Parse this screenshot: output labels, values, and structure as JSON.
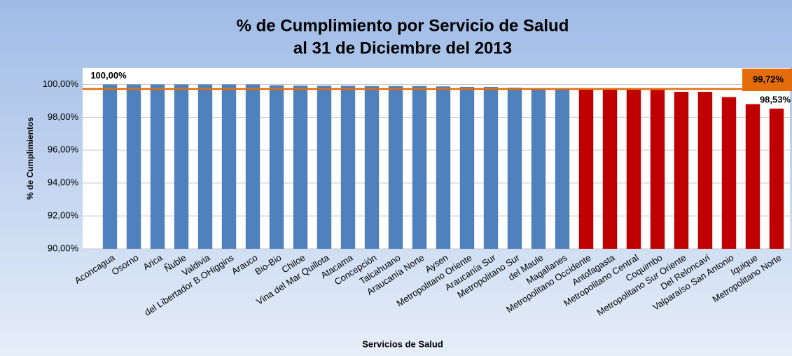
{
  "chart_data": {
    "type": "bar",
    "title": "% de Cumplimiento por Servicio de Salud",
    "subtitle": "al 31 de Diciembre del 2013",
    "x_label": "Servicios de Salud",
    "y_label": "% de Cumplimientos",
    "categories": [
      "Aconcagua",
      "Osorno",
      "Arica",
      "Ñuble",
      "Valdivia",
      "del Libertador B.OHiggins",
      "Arauco",
      "Bio-Bio",
      "Chiloe",
      "Vina del Mar Quillota",
      "Atacama",
      "Concepción",
      "Talcahuano",
      "Araucanía Norte",
      "Aysen",
      "Metropolitano Oriente",
      "Araucanía Sur",
      "Metropolitano Sur",
      "del Maule",
      "Magallanes",
      "Metropolitano Occidente",
      "Antofagasta",
      "Metropolitano Central",
      "Coquimbo",
      "Metropolitano Sur Oriente",
      "Del Reloncaví",
      "Valparaíso San Antonio",
      "Iquique",
      "Metropolitano Norte"
    ],
    "values": [
      100,
      100,
      100,
      100,
      100,
      100,
      100,
      99.95,
      99.93,
      99.92,
      99.92,
      99.9,
      99.9,
      99.9,
      99.88,
      99.85,
      99.85,
      99.8,
      99.76,
      99.73,
      99.7,
      99.7,
      99.68,
      99.67,
      99.55,
      99.55,
      99.23,
      98.8,
      98.53
    ],
    "value_labels": [
      "100,00%",
      null,
      null,
      null,
      null,
      null,
      null,
      null,
      null,
      null,
      null,
      null,
      null,
      null,
      null,
      null,
      null,
      null,
      null,
      null,
      null,
      null,
      null,
      null,
      null,
      null,
      null,
      null,
      "98,53%"
    ],
    "colors": [
      "#4f81bd",
      "#4f81bd",
      "#4f81bd",
      "#4f81bd",
      "#4f81bd",
      "#4f81bd",
      "#4f81bd",
      "#4f81bd",
      "#4f81bd",
      "#4f81bd",
      "#4f81bd",
      "#4f81bd",
      "#4f81bd",
      "#4f81bd",
      "#4f81bd",
      "#4f81bd",
      "#4f81bd",
      "#4f81bd",
      "#4f81bd",
      "#4f81bd",
      "#c00000",
      "#c00000",
      "#c00000",
      "#c00000",
      "#c00000",
      "#c00000",
      "#c00000",
      "#c00000",
      "#c00000"
    ],
    "reference_line": {
      "value": 99.72,
      "label": "99,72%",
      "color": "#e46c0a"
    },
    "ylim": [
      90,
      101
    ],
    "yticks": [
      {
        "value": 90,
        "label": "90,00%"
      },
      {
        "value": 92,
        "label": "92,00%"
      },
      {
        "value": 94,
        "label": "94,00%"
      },
      {
        "value": 96,
        "label": "96,00%"
      },
      {
        "value": 98,
        "label": "98,00%"
      },
      {
        "value": 100,
        "label": "100,00%"
      }
    ],
    "grid": true
  }
}
